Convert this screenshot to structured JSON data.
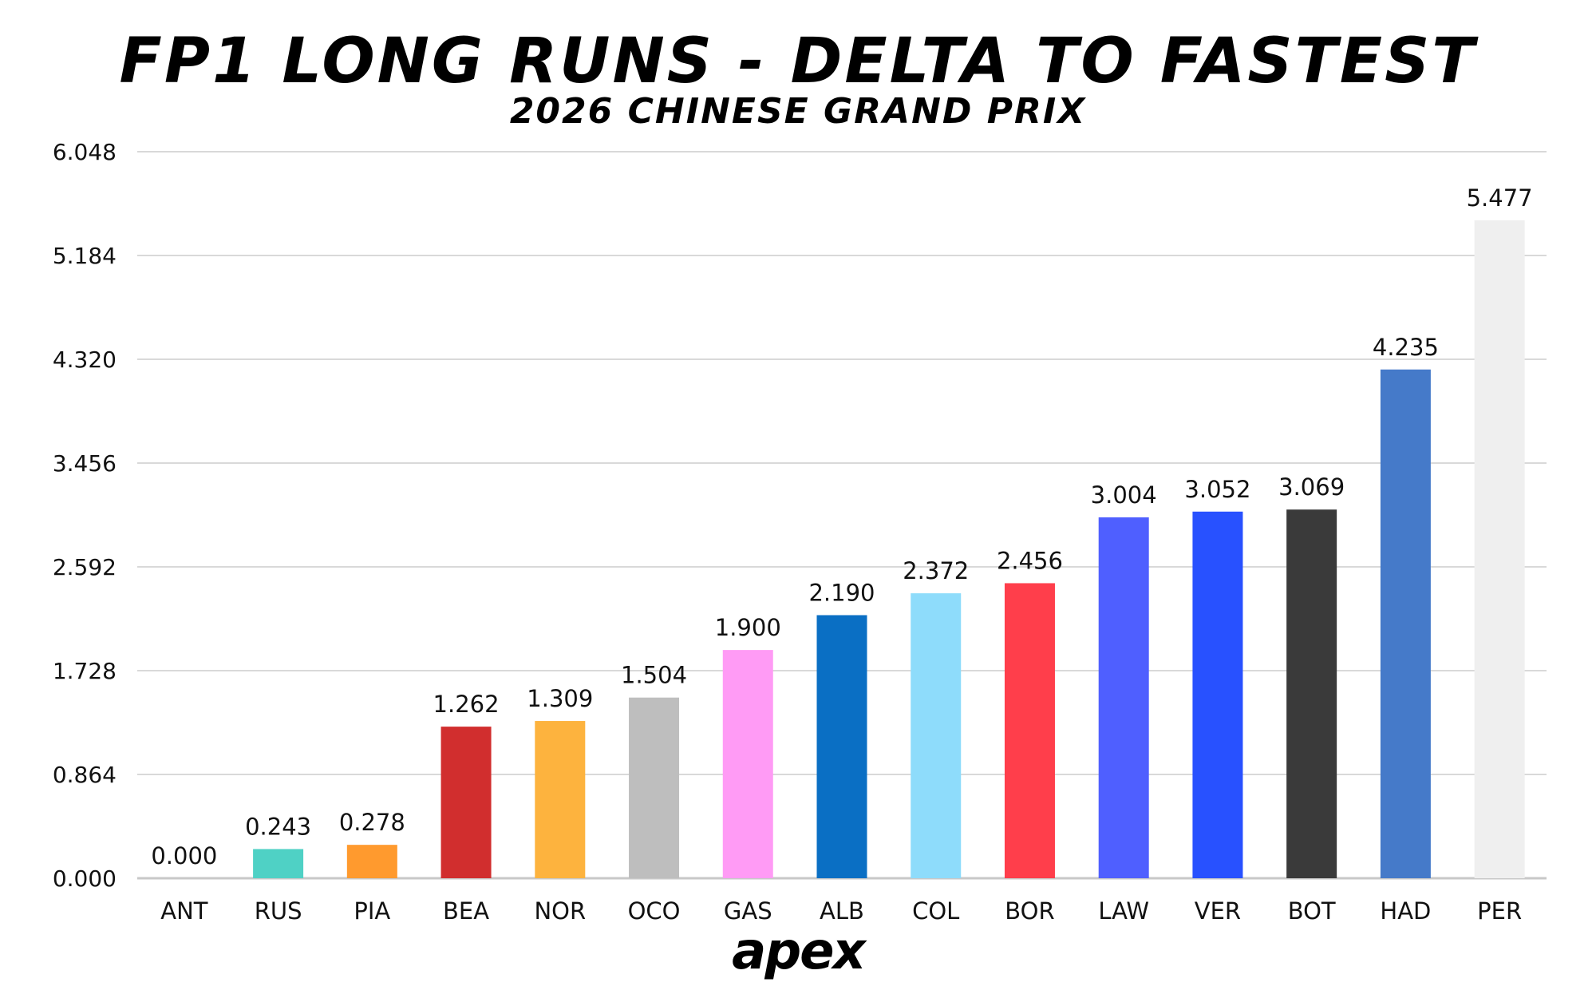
{
  "chart_data": {
    "type": "bar",
    "title": "FP1 LONG RUNS - DELTA TO FASTEST",
    "subtitle": "2026 CHINESE GRAND PRIX",
    "xlabel": "",
    "ylabel": "",
    "ylim": [
      0,
      6.048
    ],
    "yticks": [
      "0.000",
      "0.864",
      "1.728",
      "2.592",
      "3.456",
      "4.320",
      "5.184",
      "6.048"
    ],
    "ytick_values": [
      0,
      0.864,
      1.728,
      2.592,
      3.456,
      4.32,
      5.184,
      6.048
    ],
    "grid": true,
    "categories": [
      "ANT",
      "RUS",
      "PIA",
      "BEA",
      "NOR",
      "OCO",
      "GAS",
      "ALB",
      "COL",
      "BOR",
      "LAW",
      "VER",
      "BOT",
      "HAD",
      "PER"
    ],
    "values": [
      0.0,
      0.243,
      0.278,
      1.262,
      1.309,
      1.504,
      1.9,
      2.19,
      2.372,
      2.456,
      3.004,
      3.052,
      3.069,
      4.235,
      5.477
    ],
    "value_labels": [
      "0.000",
      "0.243",
      "0.278",
      "1.262",
      "1.309",
      "1.504",
      "1.900",
      "2.190",
      "2.372",
      "2.456",
      "3.004",
      "3.052",
      "3.069",
      "4.235",
      "5.477"
    ],
    "colors": [
      "#FFFFFF",
      "#4FD1C5",
      "#FF9A2E",
      "#D12E2E",
      "#FDB33E",
      "#BEBEBE",
      "#FF9BF5",
      "#0A6FC4",
      "#8EDCFB",
      "#FF3E4B",
      "#4F5FFF",
      "#2851FF",
      "#3A3A3A",
      "#457AC9",
      "#EFEFEF"
    ]
  },
  "branding": {
    "logo_text": "apex"
  }
}
